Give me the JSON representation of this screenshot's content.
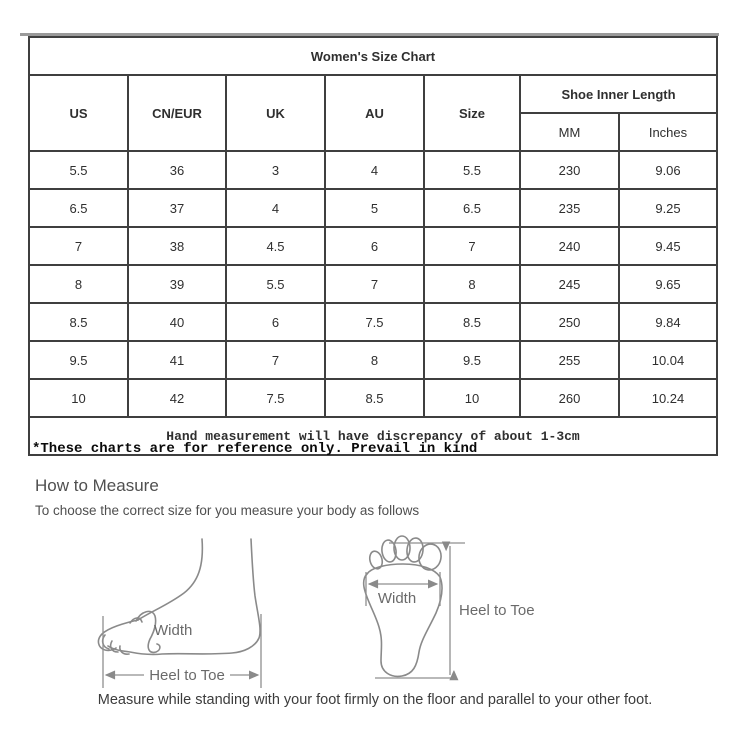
{
  "title": "Women's Size Chart",
  "table": {
    "columns": [
      "US",
      "CN/EUR",
      "UK",
      "AU",
      "Size"
    ],
    "inner_length_header": "Shoe Inner Length",
    "sub_columns": [
      "MM",
      "Inches"
    ],
    "rows": [
      [
        "5.5",
        "36",
        "3",
        "4",
        "5.5",
        "230",
        "9.06"
      ],
      [
        "6.5",
        "37",
        "4",
        "5",
        "6.5",
        "235",
        "9.25"
      ],
      [
        "7",
        "38",
        "4.5",
        "6",
        "7",
        "240",
        "9.45"
      ],
      [
        "8",
        "39",
        "5.5",
        "7",
        "8",
        "245",
        "9.65"
      ],
      [
        "8.5",
        "40",
        "6",
        "7.5",
        "8.5",
        "250",
        "9.84"
      ],
      [
        "9.5",
        "41",
        "7",
        "8",
        "9.5",
        "255",
        "10.04"
      ],
      [
        "10",
        "42",
        "7.5",
        "8.5",
        "10",
        "260",
        "10.24"
      ]
    ],
    "footnote": "Hand measurement will have discrepancy of about 1-3cm"
  },
  "disclaimer": "*These charts are for reference only. Prevail in kind",
  "measure": {
    "heading": "How to Measure",
    "subheading": "To choose the correct size for you measure your body as follows",
    "width_label": "Width",
    "heel_to_toe_label": "Heel to Toe",
    "caption": "Measure while standing with your foot firmly on the floor and parallel to your other foot."
  },
  "colors": {
    "table_border": "#3f3f3f",
    "header_bg": "#e7e7e7",
    "diagram_line": "#8a8a8a",
    "diagram_text": "#6a6a6a",
    "top_line": "#9a9a9a"
  }
}
